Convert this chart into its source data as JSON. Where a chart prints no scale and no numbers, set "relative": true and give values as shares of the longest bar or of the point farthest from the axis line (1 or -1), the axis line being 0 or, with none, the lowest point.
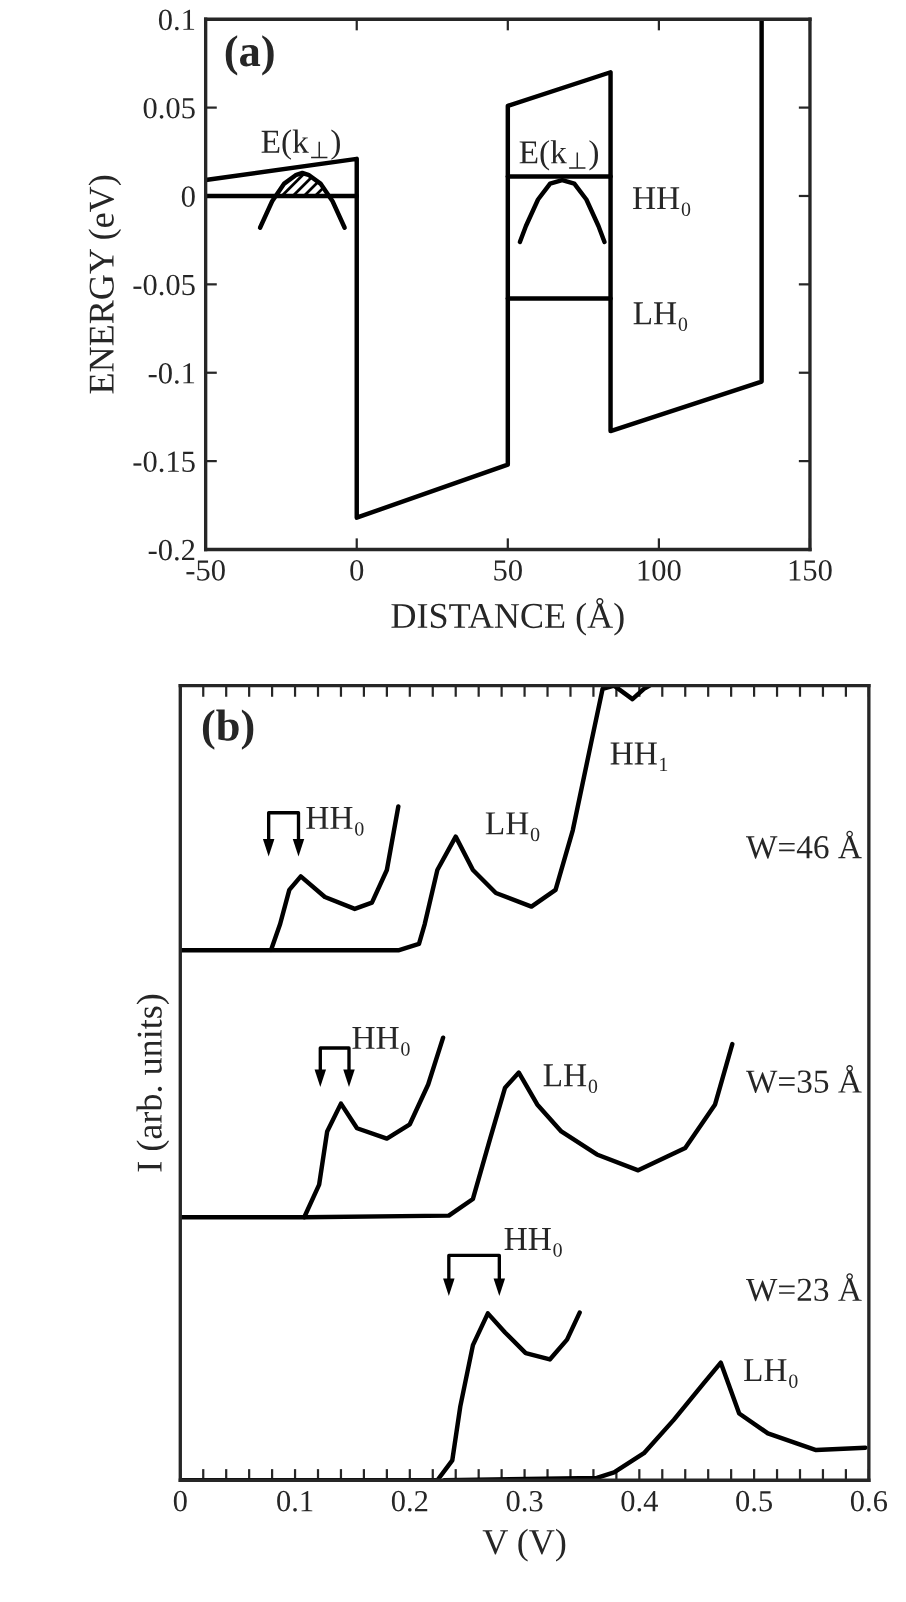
{
  "chart_data": [
    {
      "type": "line",
      "xlabel": "DISTANCE (Å)",
      "ylabel": "ENERGY (eV)",
      "xlim": [
        -50,
        150
      ],
      "xticks": [
        -50,
        0,
        50,
        100,
        150
      ],
      "ylim": [
        -0.2,
        0.1
      ],
      "yticks": [
        -0.2,
        -0.15,
        -0.1,
        -0.05,
        0,
        0.05,
        0.1
      ],
      "legend": false,
      "grid": false,
      "series": [
        {
          "color": "#000000",
          "x": [
            -50,
            0,
            0,
            50,
            50,
            84,
            84,
            134,
            134
          ],
          "values": [
            0.009,
            0.021,
            -0.182,
            -0.152,
            0.051,
            0.07,
            -0.133,
            -0.105,
            0.1
          ]
        },
        {
          "color": "#000000",
          "x": [
            -50,
            0
          ],
          "values": [
            0,
            0
          ]
        },
        {
          "color": "#000000",
          "x": [
            50,
            84
          ],
          "values": [
            0.011,
            0.011
          ]
        },
        {
          "color": "#000000",
          "x": [
            50,
            84
          ],
          "values": [
            -0.058,
            -0.058
          ]
        },
        {
          "color": "#000000",
          "x": [
            -32,
            -28,
            -24,
            -20,
            -18,
            -16,
            -12,
            -8,
            -4
          ],
          "values": [
            -0.018,
            -0.003,
            0.007,
            0.012,
            0.013,
            0.012,
            0.007,
            -0.003,
            -0.018
          ]
        },
        {
          "type": "area",
          "color": "#000000",
          "x": [
            -27,
            -24,
            -20,
            -18,
            -16,
            -12,
            -9
          ],
          "values": [
            0,
            0.007,
            0.012,
            0.013,
            0.012,
            0.007,
            0
          ]
        },
        {
          "color": "#000000",
          "x": [
            54,
            56,
            60,
            64,
            68,
            72,
            76,
            80,
            82
          ],
          "values": [
            -0.026,
            -0.017,
            -0.002,
            0.007,
            0.009,
            0.007,
            -0.002,
            -0.017,
            -0.026
          ]
        }
      ],
      "annotations": [
        "(a)",
        "E(k$_{⊥}$)",
        "E(k$_{⊥}$)",
        "HH₀",
        "LH₀"
      ]
    },
    {
      "type": "line",
      "relative": true,
      "xlabel": "V (V)",
      "ylabel": "I (arb. units)",
      "xlim": [
        0,
        0.6
      ],
      "xticks": [
        0,
        {
          "value": 0.02,
          "label": null
        },
        {
          "value": 0.04,
          "label": null
        },
        {
          "value": 0.06,
          "label": null
        },
        {
          "value": 0.08,
          "label": null
        },
        0.1,
        {
          "value": 0.12,
          "label": null
        },
        {
          "value": 0.14,
          "label": null
        },
        {
          "value": 0.16,
          "label": null
        },
        {
          "value": 0.18,
          "label": null
        },
        0.2,
        {
          "value": 0.22,
          "label": null
        },
        {
          "value": 0.24,
          "label": null
        },
        {
          "value": 0.26,
          "label": null
        },
        {
          "value": 0.28,
          "label": null
        },
        0.3,
        {
          "value": 0.32,
          "label": null
        },
        {
          "value": 0.34,
          "label": null
        },
        {
          "value": 0.36,
          "label": null
        },
        {
          "value": 0.38,
          "label": null
        },
        0.4,
        {
          "value": 0.42,
          "label": null
        },
        {
          "value": 0.44,
          "label": null
        },
        {
          "value": 0.46,
          "label": null
        },
        {
          "value": 0.48,
          "label": null
        },
        0.5,
        {
          "value": 0.52,
          "label": null
        },
        {
          "value": 0.54,
          "label": null
        },
        {
          "value": 0.56,
          "label": null
        },
        {
          "value": 0.58,
          "label": null
        },
        0.6
      ],
      "legend": false,
      "grid": false,
      "series": [
        {
          "color": "#000000",
          "x": [
            0,
            0.079,
            0.087,
            0.095,
            0.105,
            0.126,
            0.152,
            0.167,
            0.18,
            0.19
          ],
          "values": [
            0.667,
            0.667,
            0.7,
            0.743,
            0.76,
            0.734,
            0.719,
            0.727,
            0.768,
            0.848
          ]
        },
        {
          "color": "#000000",
          "x": [
            0.08,
            0.19,
            0.208,
            0.213,
            0.224,
            0.24,
            0.255,
            0.275,
            0.306,
            0.327,
            0.342,
            0.358,
            0.368,
            0.378,
            0.394,
            0.404,
            0.409
          ],
          "values": [
            0.667,
            0.667,
            0.675,
            0.7,
            0.768,
            0.81,
            0.768,
            0.739,
            0.722,
            0.743,
            0.818,
            0.928,
            0.996,
            1.0,
            0.983,
            0.996,
            1.0
          ]
        },
        {
          "color": "#000000",
          "x": [
            0,
            0.108,
            0.121,
            0.128,
            0.14,
            0.154,
            0.18,
            0.2,
            0.216,
            0.229
          ],
          "values": [
            0.331,
            0.331,
            0.372,
            0.439,
            0.474,
            0.443,
            0.43,
            0.448,
            0.498,
            0.557
          ]
        },
        {
          "color": "#000000",
          "x": [
            0.108,
            0.234,
            0.255,
            0.27,
            0.283,
            0.295,
            0.311,
            0.332,
            0.363,
            0.399,
            0.44,
            0.466,
            0.481
          ],
          "values": [
            0.331,
            0.333,
            0.354,
            0.43,
            0.494,
            0.513,
            0.473,
            0.439,
            0.41,
            0.39,
            0.418,
            0.473,
            0.549
          ]
        },
        {
          "color": "#000000",
          "x": [
            0,
            0.224,
            0.237,
            0.244,
            0.255,
            0.268,
            0.283,
            0.301,
            0.322,
            0.337,
            0.348
          ],
          "values": [
            0,
            0,
            0.025,
            0.093,
            0.17,
            0.21,
            0.186,
            0.16,
            0.152,
            0.177,
            0.211
          ]
        },
        {
          "color": "#000000",
          "x": [
            0.23,
            0.363,
            0.378,
            0.404,
            0.43,
            0.456,
            0.471,
            0.487,
            0.512,
            0.554,
            0.597
          ],
          "values": [
            0,
            0.003,
            0.01,
            0.034,
            0.076,
            0.122,
            0.148,
            0.084,
            0.059,
            0.038,
            0.041
          ]
        }
      ],
      "annotations": [
        "(b)",
        "HH₀",
        "LH₀",
        "HH₁",
        "W=46 Å",
        "HH₀",
        "LH₀",
        "W=35 Å",
        "HH₀",
        "W=23 Å",
        "LH₀"
      ]
    }
  ]
}
